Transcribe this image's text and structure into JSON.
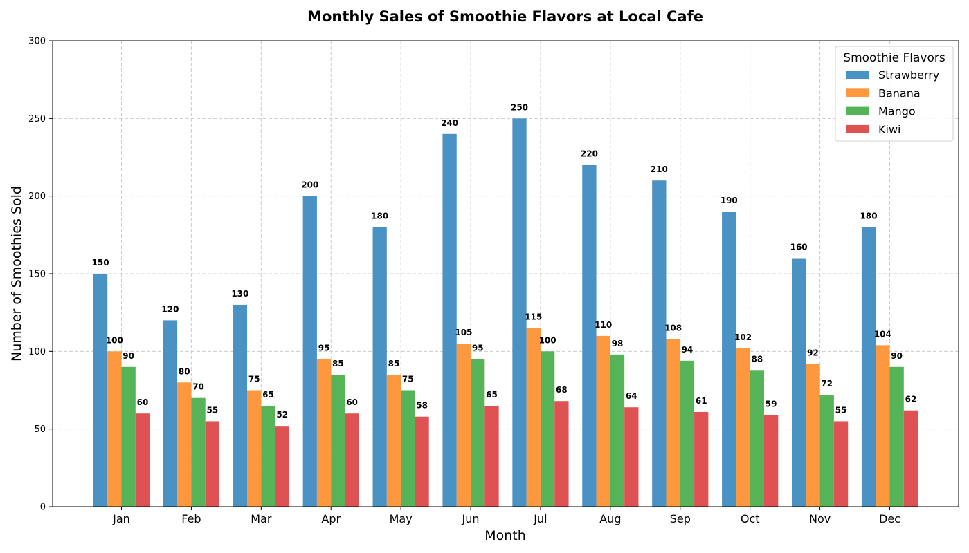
{
  "chart_data": {
    "type": "bar",
    "title": "Monthly Sales of Smoothie Flavors at Local Cafe",
    "xlabel": "Month",
    "ylabel": "Number of Smoothies Sold",
    "ylim": [
      0,
      300
    ],
    "yticks": [
      0,
      50,
      100,
      150,
      200,
      250,
      300
    ],
    "grid": true,
    "legend_title": "Smoothie Flavors",
    "legend_position": "top-right",
    "categories": [
      "Jan",
      "Feb",
      "Mar",
      "Apr",
      "May",
      "Jun",
      "Jul",
      "Aug",
      "Sep",
      "Oct",
      "Nov",
      "Dec"
    ],
    "series": [
      {
        "name": "Strawberry",
        "color": "#4a91c4",
        "values": [
          150,
          120,
          130,
          200,
          180,
          240,
          250,
          220,
          210,
          190,
          160,
          180
        ]
      },
      {
        "name": "Banana",
        "color": "#fd983e",
        "values": [
          100,
          80,
          75,
          95,
          85,
          105,
          115,
          110,
          108,
          102,
          92,
          104
        ]
      },
      {
        "name": "Mango",
        "color": "#57b357",
        "values": [
          90,
          70,
          65,
          85,
          75,
          95,
          100,
          98,
          94,
          88,
          72,
          90
        ]
      },
      {
        "name": "Kiwi",
        "color": "#de5253",
        "values": [
          60,
          55,
          52,
          60,
          58,
          65,
          68,
          64,
          61,
          59,
          55,
          62
        ]
      }
    ]
  }
}
